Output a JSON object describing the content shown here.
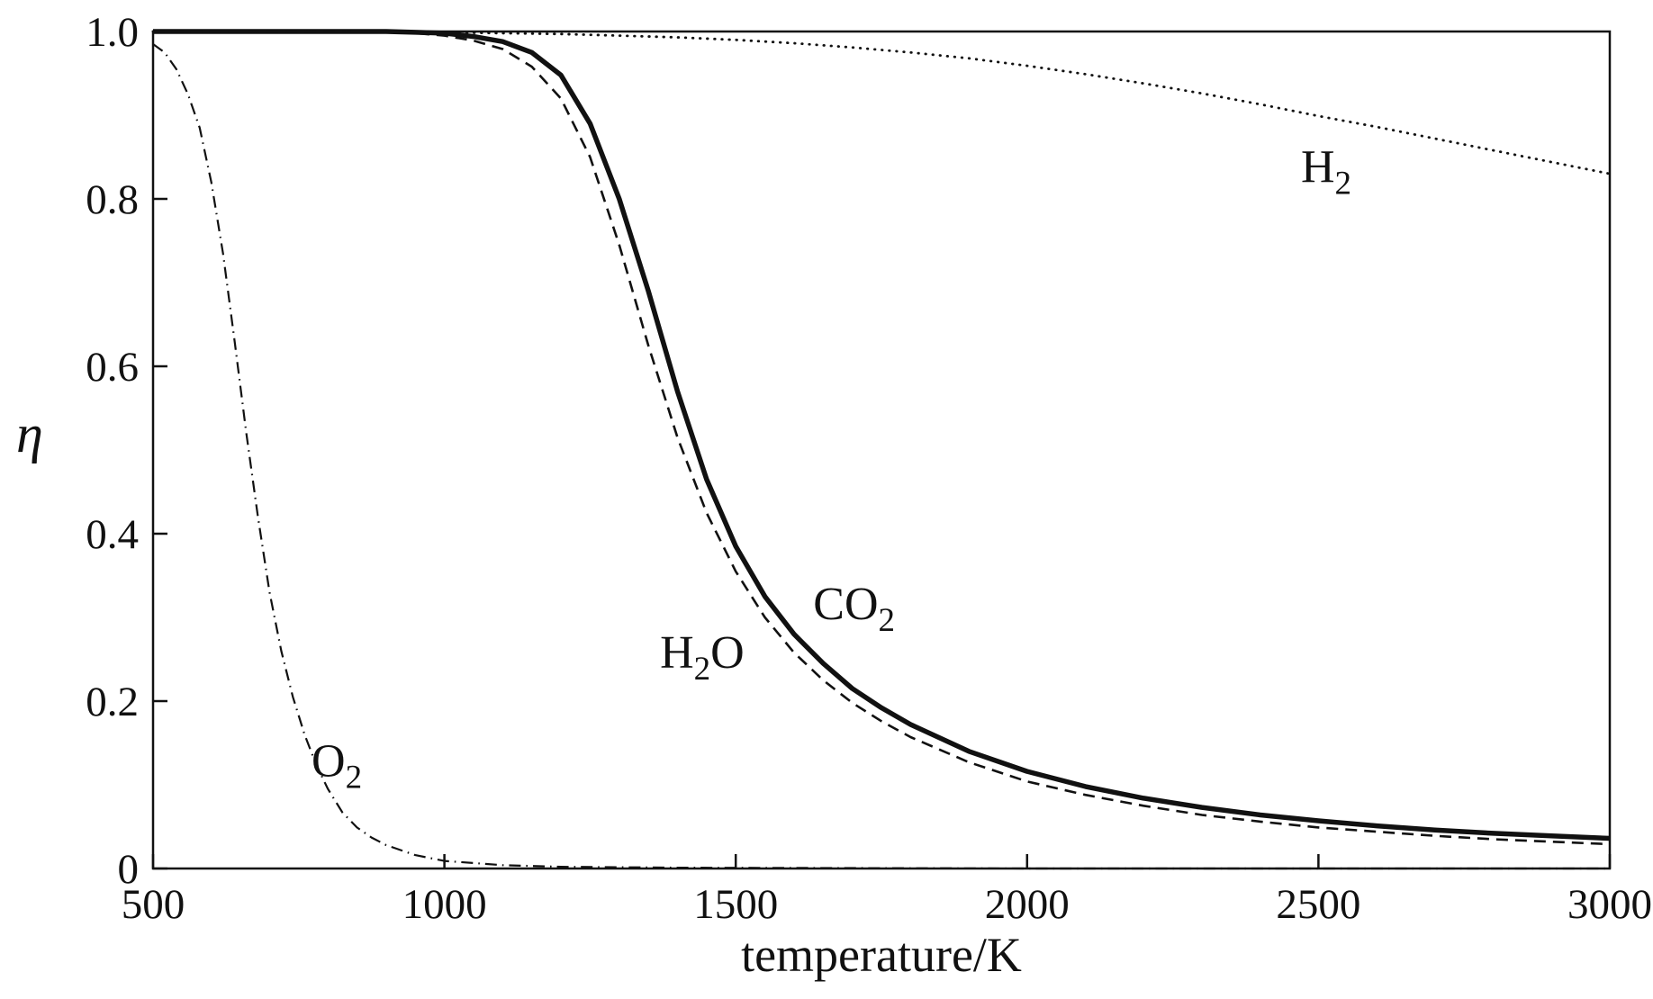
{
  "page": {
    "background": "#ffffff",
    "line_color": "#111111"
  },
  "chart_data": {
    "type": "line",
    "title": "",
    "xlabel": "temperature/K",
    "ylabel": "η",
    "xlim": [
      500,
      3000
    ],
    "ylim": [
      0,
      1.0
    ],
    "x_ticks": [
      500,
      1000,
      1500,
      2000,
      2500,
      3000
    ],
    "x_tick_labels": [
      "500",
      "1000",
      "1500",
      "2000",
      "2500",
      "3000"
    ],
    "y_ticks": [
      0,
      0.2,
      0.4,
      0.6,
      0.8,
      1.0
    ],
    "y_tick_labels": [
      "0",
      "0.2",
      "0.4",
      "0.6",
      "0.8",
      "1.0"
    ],
    "grid": false,
    "frame": true,
    "legend_position": "none",
    "series": [
      {
        "name": "H2",
        "style": "dotted",
        "width": 2.8,
        "x": [
          500,
          600,
          700,
          800,
          900,
          1000,
          1100,
          1200,
          1300,
          1400,
          1500,
          1600,
          1700,
          1800,
          1900,
          2000,
          2100,
          2200,
          2300,
          2400,
          2500,
          2600,
          2700,
          2800,
          2900,
          3000
        ],
        "values": [
          1.0,
          1.0,
          1.0,
          1.0,
          0.999,
          0.999,
          0.998,
          0.997,
          0.995,
          0.993,
          0.99,
          0.986,
          0.981,
          0.975,
          0.968,
          0.959,
          0.949,
          0.938,
          0.926,
          0.913,
          0.899,
          0.886,
          0.872,
          0.858,
          0.844,
          0.83
        ]
      },
      {
        "name": "CO2",
        "style": "solid",
        "width": 5.5,
        "x": [
          500,
          900,
          950,
          1000,
          1050,
          1100,
          1150,
          1200,
          1250,
          1300,
          1350,
          1400,
          1450,
          1500,
          1550,
          1600,
          1650,
          1700,
          1750,
          1800,
          1900,
          2000,
          2100,
          2200,
          2300,
          2400,
          2500,
          2600,
          2700,
          2800,
          2900,
          3000
        ],
        "values": [
          1.0,
          1.0,
          0.999,
          0.998,
          0.994,
          0.988,
          0.975,
          0.948,
          0.89,
          0.8,
          0.69,
          0.57,
          0.465,
          0.385,
          0.325,
          0.28,
          0.245,
          0.215,
          0.192,
          0.172,
          0.14,
          0.116,
          0.098,
          0.084,
          0.073,
          0.064,
          0.057,
          0.051,
          0.046,
          0.042,
          0.039,
          0.036
        ]
      },
      {
        "name": "H2O",
        "style": "dashed",
        "width": 2.6,
        "x": [
          500,
          900,
          950,
          1000,
          1050,
          1100,
          1150,
          1200,
          1250,
          1300,
          1350,
          1400,
          1450,
          1500,
          1550,
          1600,
          1650,
          1700,
          1750,
          1800,
          1900,
          2000,
          2100,
          2200,
          2300,
          2400,
          2500,
          2600,
          2700,
          2800,
          2900,
          3000
        ],
        "values": [
          1.0,
          0.999,
          0.998,
          0.995,
          0.989,
          0.979,
          0.958,
          0.92,
          0.85,
          0.745,
          0.625,
          0.515,
          0.425,
          0.355,
          0.3,
          0.258,
          0.225,
          0.198,
          0.176,
          0.157,
          0.127,
          0.104,
          0.088,
          0.075,
          0.064,
          0.056,
          0.049,
          0.044,
          0.039,
          0.035,
          0.032,
          0.029
        ]
      },
      {
        "name": "O2",
        "style": "dashdot",
        "width": 2.2,
        "x": [
          500,
          520,
          540,
          560,
          580,
          600,
          620,
          640,
          660,
          680,
          700,
          720,
          740,
          760,
          780,
          800,
          825,
          850,
          875,
          900,
          950,
          1000,
          1100,
          1200,
          1400,
          1700,
          2000,
          2500,
          3000
        ],
        "values": [
          0.985,
          0.975,
          0.955,
          0.925,
          0.885,
          0.82,
          0.735,
          0.63,
          0.52,
          0.42,
          0.33,
          0.26,
          0.205,
          0.16,
          0.124,
          0.095,
          0.067,
          0.049,
          0.037,
          0.028,
          0.016,
          0.009,
          0.004,
          0.002,
          0.001,
          0.0005,
          0.0,
          0.0,
          0.0
        ]
      }
    ],
    "annotations": [
      {
        "text": "H",
        "sub": "2",
        "tail": "",
        "x": 2470,
        "y": 0.82
      },
      {
        "text": "CO",
        "sub": "2",
        "tail": "",
        "x": 1633,
        "y": 0.298
      },
      {
        "text": "H",
        "sub": "2",
        "tail": "O",
        "x": 1370,
        "y": 0.24
      },
      {
        "text": "O",
        "sub": "2",
        "tail": "",
        "x": 772,
        "y": 0.11
      }
    ]
  }
}
